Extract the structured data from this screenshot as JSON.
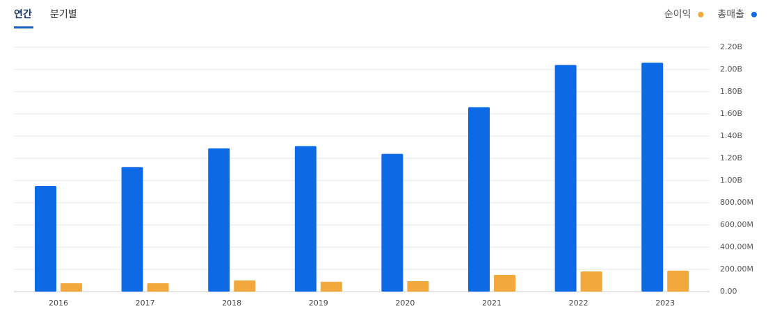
{
  "tabs": [
    "연간",
    "분기별"
  ],
  "chart_data": {
    "type": "bar",
    "categories": [
      "2016",
      "2017",
      "2018",
      "2019",
      "2020",
      "2021",
      "2022",
      "2023"
    ],
    "series": [
      {
        "name": "순이익",
        "color": "#f2a93b",
        "values": [
          75000000,
          75000000,
          100000000,
          88000000,
          94000000,
          150000000,
          181000000,
          188000000
        ]
      },
      {
        "name": "총매출",
        "color": "#0e69e4",
        "values": [
          950000000,
          1120000000,
          1290000000,
          1310000000,
          1240000000,
          1660000000,
          2040000000,
          2060000000
        ]
      }
    ],
    "ylim": [
      0,
      2200000000
    ],
    "yticks": [
      {
        "value": 0,
        "label": "0.00"
      },
      {
        "value": 200000000,
        "label": "200.00M"
      },
      {
        "value": 400000000,
        "label": "400.00M"
      },
      {
        "value": 600000000,
        "label": "600.00M"
      },
      {
        "value": 800000000,
        "label": "800.00M"
      },
      {
        "value": 1000000000,
        "label": "1.00B"
      },
      {
        "value": 1200000000,
        "label": "1.20B"
      },
      {
        "value": 1400000000,
        "label": "1.40B"
      },
      {
        "value": 1600000000,
        "label": "1.60B"
      },
      {
        "value": 1800000000,
        "label": "1.80B"
      },
      {
        "value": 2000000000,
        "label": "2.00B"
      },
      {
        "value": 2200000000,
        "label": "2.20B"
      }
    ],
    "grid": true
  }
}
